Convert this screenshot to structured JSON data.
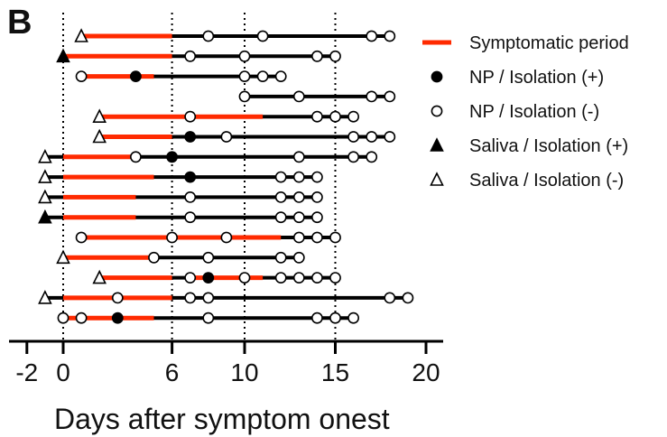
{
  "panel_label": "B",
  "chart_data": {
    "type": "scatter",
    "title": "",
    "xlabel": "Days after symptom onest",
    "ylabel": "",
    "xlim": [
      -3,
      21
    ],
    "x_ticks": [
      -2,
      0,
      6,
      10,
      15,
      20
    ],
    "reference_lines_x": [
      0,
      6,
      10,
      15
    ],
    "grid": false,
    "legend_placement": "top-right",
    "legend": [
      {
        "key": "symptomatic",
        "label": "Symptomatic period",
        "color": "#ff2a00"
      },
      {
        "key": "np_pos",
        "label": "NP / Isolation (+)"
      },
      {
        "key": "np_neg",
        "label": "NP / Isolation (-)"
      },
      {
        "key": "sal_pos",
        "label": "Saliva / Isolation (+)"
      },
      {
        "key": "sal_neg",
        "label": "Saliva / Isolation (-)"
      }
    ],
    "patients": [
      {
        "line": [
          1,
          18
        ],
        "sym": [
          [
            1,
            6
          ]
        ],
        "points": [
          {
            "x": 1,
            "t": "sal_neg"
          },
          {
            "x": 8,
            "t": "np_neg"
          },
          {
            "x": 11,
            "t": "np_neg"
          },
          {
            "x": 17,
            "t": "np_neg"
          },
          {
            "x": 18,
            "t": "np_neg"
          }
        ]
      },
      {
        "line": [
          0,
          15
        ],
        "sym": [
          [
            0,
            6
          ]
        ],
        "points": [
          {
            "x": 0,
            "t": "sal_pos"
          },
          {
            "x": 7,
            "t": "np_neg"
          },
          {
            "x": 10,
            "t": "np_neg"
          },
          {
            "x": 14,
            "t": "np_neg"
          },
          {
            "x": 15,
            "t": "np_neg"
          }
        ]
      },
      {
        "line": [
          1,
          12
        ],
        "sym": [
          [
            1,
            5
          ]
        ],
        "points": [
          {
            "x": 1,
            "t": "np_neg"
          },
          {
            "x": 4,
            "t": "np_pos"
          },
          {
            "x": 10,
            "t": "np_neg"
          },
          {
            "x": 11,
            "t": "np_neg"
          },
          {
            "x": 12,
            "t": "np_neg"
          }
        ]
      },
      {
        "line": [
          10,
          18
        ],
        "sym": [],
        "points": [
          {
            "x": 10,
            "t": "np_neg"
          },
          {
            "x": 13,
            "t": "np_neg"
          },
          {
            "x": 17,
            "t": "np_neg"
          },
          {
            "x": 18,
            "t": "np_neg"
          }
        ]
      },
      {
        "line": [
          2,
          16
        ],
        "sym": [
          [
            2,
            11
          ]
        ],
        "points": [
          {
            "x": 2,
            "t": "sal_neg"
          },
          {
            "x": 7,
            "t": "np_neg"
          },
          {
            "x": 14,
            "t": "np_neg"
          },
          {
            "x": 15,
            "t": "np_neg"
          },
          {
            "x": 16,
            "t": "np_neg"
          }
        ]
      },
      {
        "line": [
          2,
          18
        ],
        "sym": [
          [
            2,
            6
          ]
        ],
        "points": [
          {
            "x": 2,
            "t": "sal_neg"
          },
          {
            "x": 7,
            "t": "np_pos"
          },
          {
            "x": 9,
            "t": "np_neg"
          },
          {
            "x": 16,
            "t": "np_neg"
          },
          {
            "x": 17,
            "t": "np_neg"
          },
          {
            "x": 18,
            "t": "np_neg"
          }
        ]
      },
      {
        "line": [
          -1,
          17
        ],
        "sym": [
          [
            0,
            4
          ]
        ],
        "points": [
          {
            "x": -1,
            "t": "sal_neg"
          },
          {
            "x": 4,
            "t": "np_neg"
          },
          {
            "x": 6,
            "t": "np_pos"
          },
          {
            "x": 13,
            "t": "np_neg"
          },
          {
            "x": 16,
            "t": "np_neg"
          },
          {
            "x": 17,
            "t": "np_neg"
          }
        ]
      },
      {
        "line": [
          -1,
          14
        ],
        "sym": [
          [
            0,
            5
          ]
        ],
        "points": [
          {
            "x": -1,
            "t": "sal_neg"
          },
          {
            "x": 7,
            "t": "np_pos"
          },
          {
            "x": 12,
            "t": "np_neg"
          },
          {
            "x": 13,
            "t": "np_neg"
          },
          {
            "x": 14,
            "t": "np_neg"
          }
        ]
      },
      {
        "line": [
          -1,
          14
        ],
        "sym": [
          [
            0,
            4
          ]
        ],
        "points": [
          {
            "x": -1,
            "t": "sal_neg"
          },
          {
            "x": 7,
            "t": "np_neg"
          },
          {
            "x": 12,
            "t": "np_neg"
          },
          {
            "x": 13,
            "t": "np_neg"
          },
          {
            "x": 14,
            "t": "np_neg"
          }
        ]
      },
      {
        "line": [
          -1,
          14
        ],
        "sym": [
          [
            0,
            4
          ]
        ],
        "points": [
          {
            "x": -1,
            "t": "sal_pos"
          },
          {
            "x": 7,
            "t": "np_neg"
          },
          {
            "x": 12,
            "t": "np_neg"
          },
          {
            "x": 13,
            "t": "np_neg"
          },
          {
            "x": 14,
            "t": "np_neg"
          }
        ]
      },
      {
        "line": [
          1,
          15
        ],
        "sym": [
          [
            1,
            12
          ]
        ],
        "points": [
          {
            "x": 1,
            "t": "np_neg"
          },
          {
            "x": 6,
            "t": "np_neg"
          },
          {
            "x": 9,
            "t": "np_neg"
          },
          {
            "x": 13,
            "t": "np_neg"
          },
          {
            "x": 14,
            "t": "np_neg"
          },
          {
            "x": 15,
            "t": "np_neg"
          }
        ]
      },
      {
        "line": [
          0,
          13
        ],
        "sym": [
          [
            0,
            5
          ]
        ],
        "points": [
          {
            "x": 0,
            "t": "sal_neg"
          },
          {
            "x": 5,
            "t": "np_neg"
          },
          {
            "x": 8,
            "t": "np_neg"
          },
          {
            "x": 12,
            "t": "np_neg"
          },
          {
            "x": 13,
            "t": "np_neg"
          }
        ]
      },
      {
        "line": [
          2,
          15
        ],
        "sym": [
          [
            2,
            6
          ],
          [
            7,
            11
          ]
        ],
        "points": [
          {
            "x": 2,
            "t": "sal_neg"
          },
          {
            "x": 7,
            "t": "np_neg"
          },
          {
            "x": 8,
            "t": "np_pos"
          },
          {
            "x": 10,
            "t": "np_neg"
          },
          {
            "x": 12,
            "t": "np_neg"
          },
          {
            "x": 13,
            "t": "np_neg"
          },
          {
            "x": 14,
            "t": "np_neg"
          },
          {
            "x": 15,
            "t": "np_neg"
          }
        ]
      },
      {
        "line": [
          -1,
          19
        ],
        "sym": [
          [
            0,
            6
          ]
        ],
        "points": [
          {
            "x": -1,
            "t": "sal_neg"
          },
          {
            "x": 3,
            "t": "np_neg"
          },
          {
            "x": 7,
            "t": "np_neg"
          },
          {
            "x": 8,
            "t": "np_neg"
          },
          {
            "x": 18,
            "t": "np_neg"
          },
          {
            "x": 19,
            "t": "np_neg"
          }
        ]
      },
      {
        "line": [
          0,
          16
        ],
        "sym": [
          [
            0,
            5
          ]
        ],
        "points": [
          {
            "x": 0,
            "t": "np_neg"
          },
          {
            "x": 1,
            "t": "np_neg"
          },
          {
            "x": 3,
            "t": "np_pos"
          },
          {
            "x": 8,
            "t": "np_neg"
          },
          {
            "x": 14,
            "t": "np_neg"
          },
          {
            "x": 15,
            "t": "np_neg"
          },
          {
            "x": 16,
            "t": "np_neg"
          }
        ]
      }
    ]
  }
}
